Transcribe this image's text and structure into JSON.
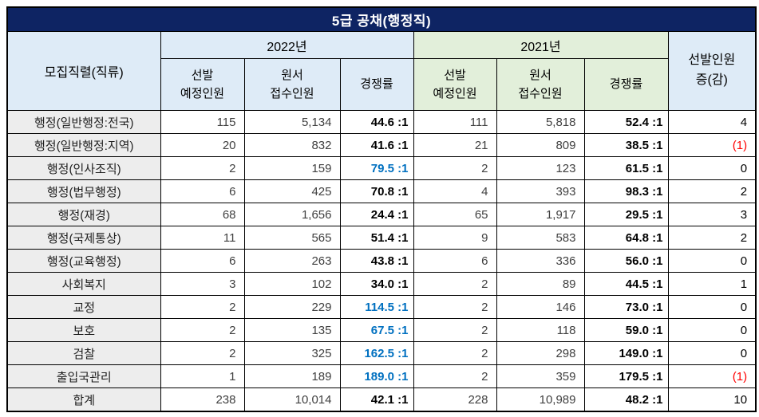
{
  "title": "5급 공채(행정직)",
  "colors": {
    "title_bg": "#0E2463",
    "title_text": "#FFFFFF",
    "header_blue_bg": "#DEEBF7",
    "header_green_bg": "#E2EFDA",
    "row_label_bg": "#EDEDED",
    "count_text": "#404040",
    "rate_highlight_blue": "#0070C0",
    "negative_red": "#FF0000",
    "border": "#000000"
  },
  "table": {
    "row_header_label": "모집직렬(직류)",
    "group_2022": "2022년",
    "group_2021": "2021년",
    "headers": {
      "planned_l1": "선발",
      "planned_l2": "예정인원",
      "applicants_l1": "원서",
      "applicants_l2": "접수인원",
      "ratio": "경쟁률",
      "diff_l1": "선발인원",
      "diff_l2": "증(감)"
    },
    "rows": [
      {
        "label": "행정(일반행정:전국)",
        "p22": "115",
        "a22": "5,134",
        "r22": "44.6 :1",
        "r22_blue": false,
        "p21": "111",
        "a21": "5,818",
        "r21": "52.4 :1",
        "diff": "4",
        "diff_red": false
      },
      {
        "label": "행정(일반행정:지역)",
        "p22": "20",
        "a22": "832",
        "r22": "41.6 :1",
        "r22_blue": false,
        "p21": "21",
        "a21": "809",
        "r21": "38.5 :1",
        "diff": "(1)",
        "diff_red": true
      },
      {
        "label": "행정(인사조직)",
        "p22": "2",
        "a22": "159",
        "r22": "79.5 :1",
        "r22_blue": true,
        "p21": "2",
        "a21": "123",
        "r21": "61.5 :1",
        "diff": "0",
        "diff_red": false
      },
      {
        "label": "행정(법무행정)",
        "p22": "6",
        "a22": "425",
        "r22": "70.8 :1",
        "r22_blue": false,
        "p21": "4",
        "a21": "393",
        "r21": "98.3 :1",
        "diff": "2",
        "diff_red": false
      },
      {
        "label": "행정(재경)",
        "p22": "68",
        "a22": "1,656",
        "r22": "24.4 :1",
        "r22_blue": false,
        "p21": "65",
        "a21": "1,917",
        "r21": "29.5 :1",
        "diff": "3",
        "diff_red": false
      },
      {
        "label": "행정(국제통상)",
        "p22": "11",
        "a22": "565",
        "r22": "51.4 :1",
        "r22_blue": false,
        "p21": "9",
        "a21": "583",
        "r21": "64.8 :1",
        "diff": "2",
        "diff_red": false
      },
      {
        "label": "행정(교육행정)",
        "p22": "6",
        "a22": "263",
        "r22": "43.8 :1",
        "r22_blue": false,
        "p21": "6",
        "a21": "336",
        "r21": "56.0 :1",
        "diff": "0",
        "diff_red": false
      },
      {
        "label": "사회복지",
        "p22": "3",
        "a22": "102",
        "r22": "34.0 :1",
        "r22_blue": false,
        "p21": "2",
        "a21": "89",
        "r21": "44.5 :1",
        "diff": "1",
        "diff_red": false
      },
      {
        "label": "교정",
        "p22": "2",
        "a22": "229",
        "r22": "114.5 :1",
        "r22_blue": true,
        "p21": "2",
        "a21": "146",
        "r21": "73.0 :1",
        "diff": "0",
        "diff_red": false
      },
      {
        "label": "보호",
        "p22": "2",
        "a22": "135",
        "r22": "67.5 :1",
        "r22_blue": true,
        "p21": "2",
        "a21": "118",
        "r21": "59.0 :1",
        "diff": "0",
        "diff_red": false
      },
      {
        "label": "검찰",
        "p22": "2",
        "a22": "325",
        "r22": "162.5 :1",
        "r22_blue": true,
        "p21": "2",
        "a21": "298",
        "r21": "149.0 :1",
        "diff": "0",
        "diff_red": false
      },
      {
        "label": "출입국관리",
        "p22": "1",
        "a22": "189",
        "r22": "189.0 :1",
        "r22_blue": true,
        "p21": "2",
        "a21": "359",
        "r21": "179.5 :1",
        "diff": "(1)",
        "diff_red": true
      },
      {
        "label": "합계",
        "p22": "238",
        "a22": "10,014",
        "r22": "42.1 :1",
        "r22_blue": false,
        "p21": "228",
        "a21": "10,989",
        "r21": "48.2 :1",
        "diff": "10",
        "diff_red": false,
        "is_total": true
      }
    ]
  }
}
